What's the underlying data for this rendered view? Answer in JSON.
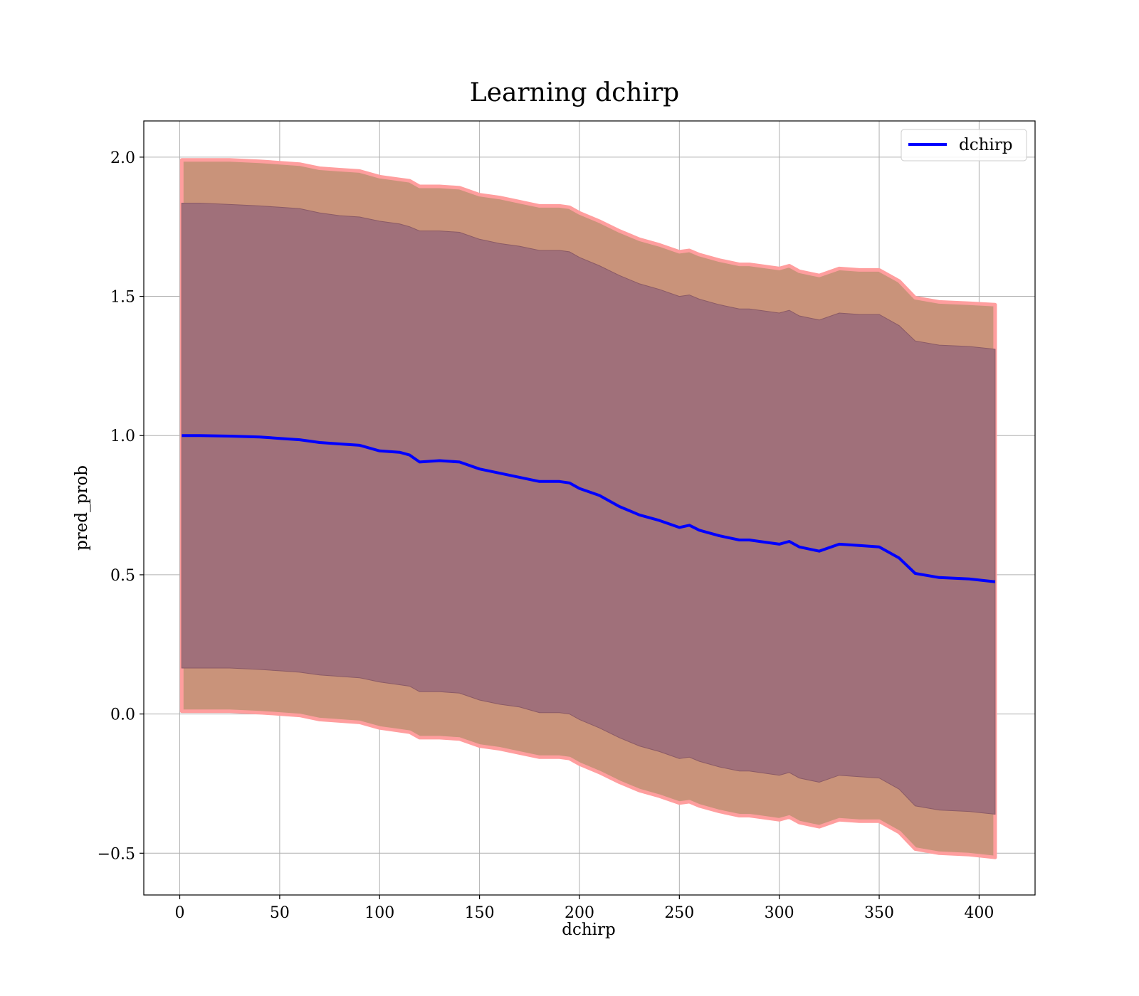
{
  "chart_data": {
    "type": "line",
    "title": "Learning dchirp",
    "xlabel": "dchirp",
    "ylabel": "pred_prob",
    "xlim": [
      -18,
      428
    ],
    "ylim": [
      -0.65,
      2.13
    ],
    "xticks": [
      0,
      50,
      100,
      150,
      200,
      250,
      300,
      350,
      400
    ],
    "xtick_labels": [
      "0",
      "50",
      "100",
      "150",
      "200",
      "250",
      "300",
      "350",
      "400"
    ],
    "yticks": [
      -0.5,
      0.0,
      0.5,
      1.0,
      1.5,
      2.0
    ],
    "ytick_labels": [
      "−0.5",
      "0.0",
      "0.5",
      "1.0",
      "1.5",
      "2.0"
    ],
    "grid": true,
    "legend": {
      "position": "top-right",
      "entries": [
        "dchirp"
      ]
    },
    "colors": {
      "line": "#0000ff",
      "outer_band": "#c9937a",
      "outer_band_edge": "#ff9e9e",
      "inner_band": "#a0707a",
      "inner_band_edge": "#8a5a66"
    },
    "x": [
      1,
      10,
      25,
      40,
      50,
      60,
      70,
      80,
      90,
      100,
      110,
      115,
      120,
      130,
      140,
      150,
      160,
      170,
      180,
      190,
      195,
      200,
      210,
      220,
      230,
      240,
      250,
      255,
      260,
      270,
      280,
      285,
      290,
      300,
      305,
      310,
      320,
      330,
      340,
      350,
      360,
      368,
      380,
      395,
      408
    ],
    "series": [
      {
        "name": "dchirp",
        "values": [
          1.0,
          1.0,
          0.998,
          0.995,
          0.99,
          0.985,
          0.975,
          0.97,
          0.965,
          0.945,
          0.94,
          0.93,
          0.905,
          0.91,
          0.905,
          0.88,
          0.865,
          0.85,
          0.835,
          0.835,
          0.83,
          0.81,
          0.785,
          0.745,
          0.715,
          0.695,
          0.67,
          0.678,
          0.66,
          0.64,
          0.625,
          0.625,
          0.62,
          0.61,
          0.62,
          0.6,
          0.585,
          0.61,
          0.605,
          0.6,
          0.56,
          0.505,
          0.49,
          0.485,
          0.475
        ]
      }
    ],
    "inner_band": {
      "upper": [
        1.835,
        1.835,
        1.83,
        1.825,
        1.82,
        1.815,
        1.8,
        1.79,
        1.785,
        1.77,
        1.76,
        1.75,
        1.735,
        1.735,
        1.73,
        1.705,
        1.69,
        1.68,
        1.665,
        1.665,
        1.66,
        1.64,
        1.61,
        1.575,
        1.545,
        1.525,
        1.5,
        1.505,
        1.49,
        1.47,
        1.455,
        1.455,
        1.45,
        1.44,
        1.45,
        1.43,
        1.415,
        1.44,
        1.435,
        1.435,
        1.395,
        1.34,
        1.325,
        1.32,
        1.31
      ],
      "lower": [
        0.165,
        0.165,
        0.165,
        0.16,
        0.155,
        0.15,
        0.14,
        0.135,
        0.13,
        0.115,
        0.105,
        0.1,
        0.08,
        0.08,
        0.075,
        0.05,
        0.035,
        0.025,
        0.005,
        0.005,
        0.0,
        -0.02,
        -0.05,
        -0.085,
        -0.115,
        -0.135,
        -0.16,
        -0.155,
        -0.17,
        -0.19,
        -0.205,
        -0.205,
        -0.21,
        -0.22,
        -0.21,
        -0.23,
        -0.245,
        -0.22,
        -0.225,
        -0.23,
        -0.27,
        -0.33,
        -0.345,
        -0.35,
        -0.36
      ]
    },
    "outer_band": {
      "upper": [
        1.99,
        1.99,
        1.99,
        1.985,
        1.98,
        1.975,
        1.96,
        1.955,
        1.95,
        1.93,
        1.92,
        1.915,
        1.895,
        1.895,
        1.89,
        1.865,
        1.855,
        1.84,
        1.825,
        1.825,
        1.82,
        1.8,
        1.77,
        1.735,
        1.705,
        1.685,
        1.66,
        1.665,
        1.65,
        1.63,
        1.615,
        1.615,
        1.61,
        1.6,
        1.61,
        1.59,
        1.575,
        1.6,
        1.595,
        1.595,
        1.555,
        1.495,
        1.48,
        1.475,
        1.47
      ],
      "lower": [
        0.01,
        0.01,
        0.01,
        0.005,
        0.0,
        -0.005,
        -0.02,
        -0.025,
        -0.03,
        -0.05,
        -0.06,
        -0.065,
        -0.085,
        -0.085,
        -0.09,
        -0.115,
        -0.125,
        -0.14,
        -0.155,
        -0.155,
        -0.16,
        -0.18,
        -0.21,
        -0.245,
        -0.275,
        -0.295,
        -0.32,
        -0.315,
        -0.33,
        -0.35,
        -0.365,
        -0.365,
        -0.37,
        -0.38,
        -0.37,
        -0.39,
        -0.405,
        -0.38,
        -0.385,
        -0.385,
        -0.425,
        -0.485,
        -0.5,
        -0.505,
        -0.515
      ]
    }
  }
}
